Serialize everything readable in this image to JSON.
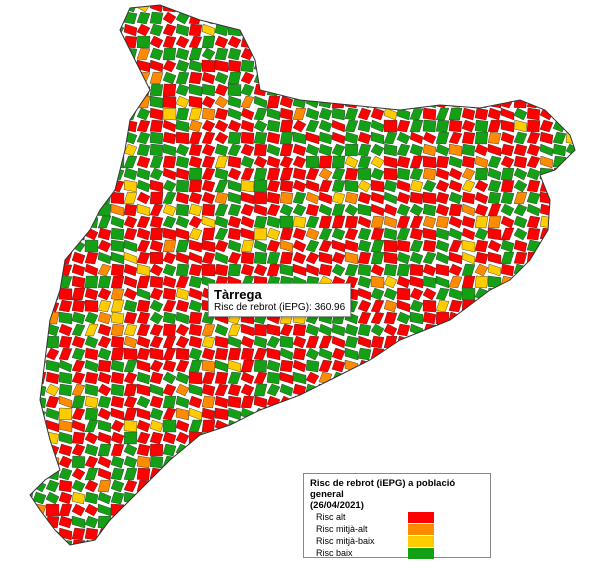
{
  "tooltip": {
    "title": "Tàrrega",
    "label": "Risc de rebrot (iEPG):",
    "value": 360.96
  },
  "legend": {
    "title": "Risc de rebrot (iEPG) a població general",
    "subtitle": "(26/04/2021)",
    "items": [
      {
        "name": "Risc alt",
        "color": "#ff0000"
      },
      {
        "name": "Risc mitjà-alt",
        "color": "#ff8c00"
      },
      {
        "name": "Risc mitjà-baix",
        "color": "#ffcc00"
      },
      {
        "name": "Risc baix",
        "color": "#14a014"
      }
    ]
  }
}
